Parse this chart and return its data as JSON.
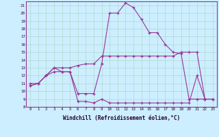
{
  "xlabel": "Windchill (Refroidissement éolien,°C)",
  "background_color": "#cceeff",
  "grid_color": "#b0d8cc",
  "line_color": "#993399",
  "xmin": 0,
  "xmax": 23,
  "ymin": 8,
  "ymax": 21,
  "line1_x": [
    0,
    1,
    2,
    3,
    4,
    5,
    6,
    7,
    8,
    9,
    10,
    11,
    12,
    13,
    14,
    15,
    16,
    17,
    18,
    19,
    20,
    21,
    22,
    23
  ],
  "line1_y": [
    10.7,
    11.0,
    12.0,
    13.0,
    13.0,
    13.0,
    13.3,
    13.5,
    13.5,
    14.5,
    14.5,
    14.5,
    14.5,
    14.5,
    14.5,
    14.5,
    14.5,
    14.5,
    14.5,
    15.0,
    15.0,
    15.0,
    9.0,
    9.0
  ],
  "line2_x": [
    0,
    1,
    2,
    3,
    4,
    5,
    6,
    7,
    8,
    9,
    10,
    11,
    12,
    13,
    14,
    15,
    16,
    17,
    18,
    19,
    20,
    21,
    22,
    23
  ],
  "line2_y": [
    11.0,
    11.0,
    12.0,
    13.0,
    12.5,
    12.5,
    8.7,
    8.7,
    8.5,
    9.0,
    8.5,
    8.5,
    8.5,
    8.5,
    8.5,
    8.5,
    8.5,
    8.5,
    8.5,
    8.5,
    8.5,
    12.0,
    9.0,
    9.0
  ],
  "line3_x": [
    0,
    1,
    2,
    3,
    4,
    5,
    6,
    7,
    8,
    9,
    10,
    11,
    12,
    13,
    14,
    15,
    16,
    17,
    18,
    19,
    20,
    21,
    22,
    23
  ],
  "line3_y": [
    10.7,
    11.0,
    12.0,
    12.5,
    12.5,
    12.5,
    9.7,
    9.7,
    9.7,
    13.5,
    20.0,
    20.0,
    21.3,
    20.7,
    19.2,
    17.5,
    17.5,
    16.0,
    15.0,
    14.8,
    9.0,
    9.0,
    9.0,
    9.0
  ],
  "yticks": [
    8,
    9,
    10,
    11,
    12,
    13,
    14,
    15,
    16,
    17,
    18,
    19,
    20,
    21
  ],
  "xticks": [
    0,
    1,
    2,
    3,
    4,
    5,
    6,
    7,
    8,
    9,
    10,
    11,
    12,
    13,
    14,
    15,
    16,
    17,
    18,
    19,
    20,
    21,
    22,
    23
  ]
}
